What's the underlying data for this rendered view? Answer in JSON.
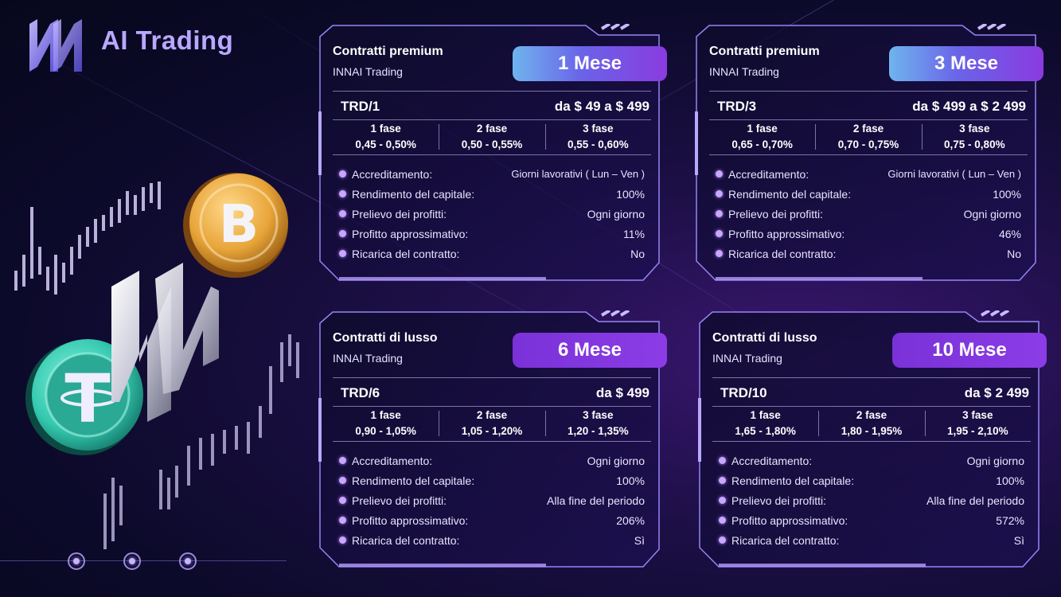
{
  "brand": {
    "name": "AI Trading",
    "logo_icon": "innai-logo-icon"
  },
  "row_labels": {
    "accreditamento": "Accreditamento:",
    "rendimento": "Rendimento del capitale:",
    "prelievo": "Prelievo dei profitti:",
    "profitto": "Profitto approssimativo:",
    "ricarica": "Ricarica del contratto:"
  },
  "cards": [
    {
      "title": "Contratti premium",
      "subtitle": "INNAI Trading",
      "duration": "1 Mese",
      "code": "TRD/1",
      "price": "da $ 49 a $ 499",
      "phases": [
        {
          "name": "1 fase",
          "range": "0,45 - 0,50%"
        },
        {
          "name": "2 fase",
          "range": "0,50 - 0,55%"
        },
        {
          "name": "3 fase",
          "range": "0,55 - 0,60%"
        }
      ],
      "accreditamento": "Giorni lavorativi ( Lun – Ven )",
      "rendimento": "100%",
      "prelievo": "Ogni giorno",
      "profitto": "11%",
      "ricarica": "No"
    },
    {
      "title": "Contratti premium",
      "subtitle": "INNAI Trading",
      "duration": "3 Mese",
      "code": "TRD/3",
      "price": "da $ 499 a $ 2 499",
      "phases": [
        {
          "name": "1 fase",
          "range": "0,65 - 0,70%"
        },
        {
          "name": "2 fase",
          "range": "0,70 - 0,75%"
        },
        {
          "name": "3 fase",
          "range": "0,75 - 0,80%"
        }
      ],
      "accreditamento": "Giorni lavorativi ( Lun – Ven )",
      "rendimento": "100%",
      "prelievo": "Ogni giorno",
      "profitto": "46%",
      "ricarica": "No"
    },
    {
      "title": "Contratti di lusso",
      "subtitle": "INNAI Trading",
      "duration": "6 Mese",
      "code": "TRD/6",
      "price": "da $ 499",
      "phases": [
        {
          "name": "1 fase",
          "range": "0,90 - 1,05%"
        },
        {
          "name": "2 fase",
          "range": "1,05 - 1,20%"
        },
        {
          "name": "3 fase",
          "range": "1,20 - 1,35%"
        }
      ],
      "accreditamento": "Ogni giorno",
      "rendimento": "100%",
      "prelievo": "Alla fine del periodo",
      "profitto": "206%",
      "ricarica": "Sì"
    },
    {
      "title": "Contratti di lusso",
      "subtitle": "INNAI Trading",
      "duration": "10 Mese",
      "code": "TRD/10",
      "price": "da $ 2 499",
      "phases": [
        {
          "name": "1 fase",
          "range": "1,65 - 1,80%"
        },
        {
          "name": "2 fase",
          "range": "1,80 - 1,95%"
        },
        {
          "name": "3 fase",
          "range": "1,95 - 2,10%"
        }
      ],
      "accreditamento": "Ogni giorno",
      "rendimento": "100%",
      "prelievo": "Alla fine del periodo",
      "profitto": "572%",
      "ricarica": "Sì"
    }
  ],
  "colors": {
    "accent": "#8c3ce6",
    "accent_blue": "#6fb4ee",
    "bitcoin": "#e8a53a",
    "tether": "#35c9b0"
  }
}
